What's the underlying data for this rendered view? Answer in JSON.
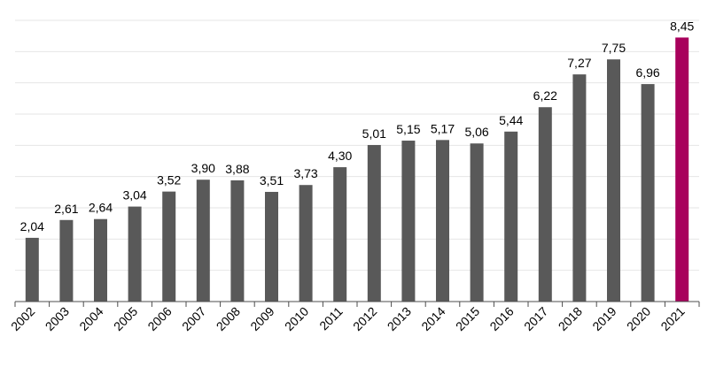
{
  "chart_data": {
    "type": "bar",
    "categories": [
      "2002",
      "2003",
      "2004",
      "2005",
      "2006",
      "2007",
      "2008",
      "2009",
      "2010",
      "2011",
      "2012",
      "2013",
      "2014",
      "2015",
      "2016",
      "2017",
      "2018",
      "2019",
      "2020",
      "2021"
    ],
    "values": [
      2.04,
      2.61,
      2.64,
      3.04,
      3.52,
      3.9,
      3.88,
      3.51,
      3.73,
      4.3,
      5.01,
      5.15,
      5.17,
      5.06,
      5.44,
      6.22,
      7.27,
      7.75,
      6.96,
      8.45
    ],
    "value_labels": [
      "2,04",
      "2,61",
      "2,64",
      "3,04",
      "3,52",
      "3,90",
      "3,88",
      "3,51",
      "3,73",
      "4,30",
      "5,01",
      "5,15",
      "5,17",
      "5,06",
      "5,44",
      "6,22",
      "7,27",
      "7,75",
      "6,96",
      "8,45"
    ],
    "title": "",
    "xlabel": "",
    "ylabel": "",
    "ylim": [
      0,
      9
    ],
    "grid": true,
    "x_tick_rotation": -45,
    "colors": {
      "bar": "#595959",
      "highlight": "#a8005c",
      "grid": "#e6e6e6",
      "axis": "#4d4d4d"
    },
    "highlight_category": "2021"
  }
}
